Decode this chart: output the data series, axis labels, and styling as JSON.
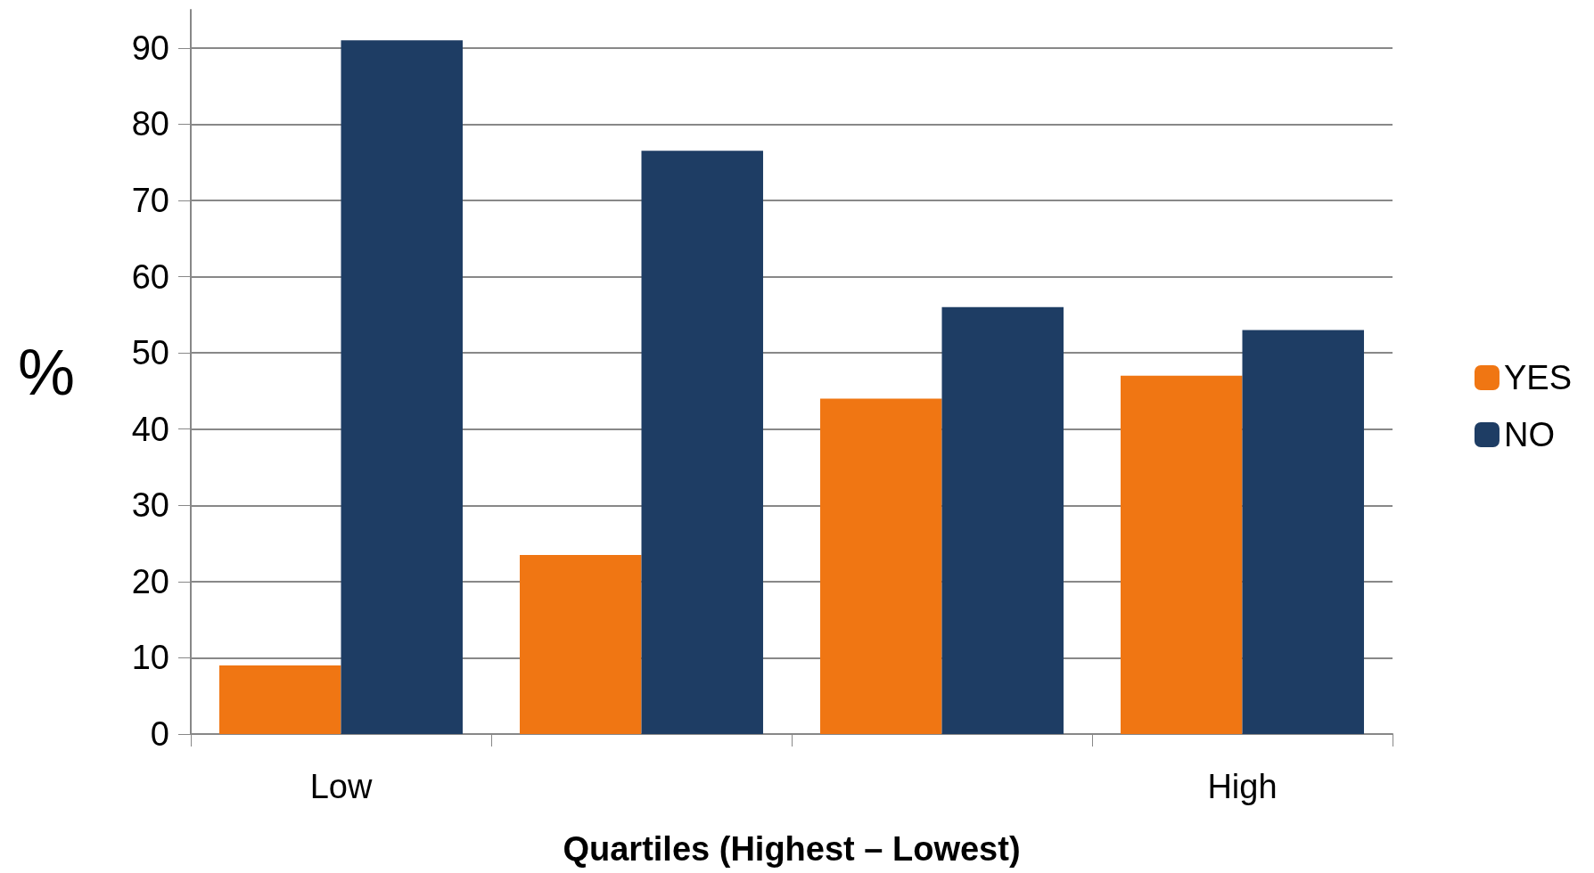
{
  "chart_data": {
    "type": "bar",
    "xlabel": "Quartiles (Highest – Lowest)",
    "ylabel": "%",
    "categories": [
      "Low",
      null,
      null,
      "High"
    ],
    "series": [
      {
        "name": "YES",
        "color": "#f07613",
        "values": [
          9,
          23.5,
          44,
          47
        ]
      },
      {
        "name": "NO",
        "color": "#1e3d64",
        "values": [
          91,
          76.5,
          56,
          53
        ]
      }
    ],
    "ylim": [
      0,
      95
    ],
    "yticks": [
      0,
      10,
      20,
      30,
      40,
      50,
      60,
      70,
      80,
      90
    ],
    "grid": "y",
    "legend": "right"
  }
}
